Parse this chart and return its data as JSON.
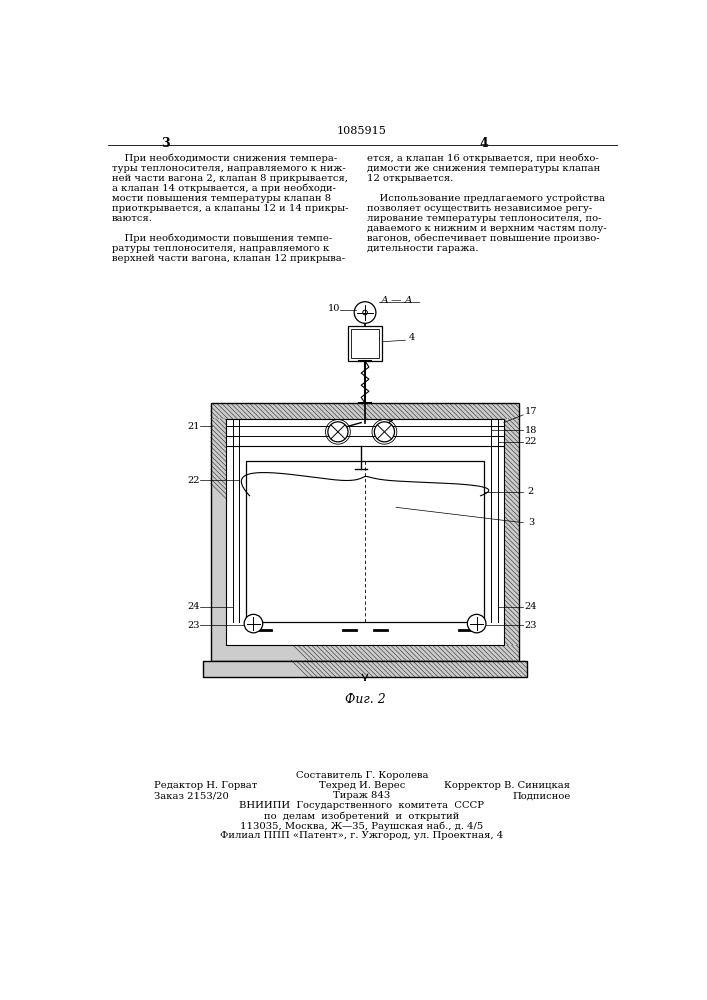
{
  "title": "1085915",
  "page_num_left": "3",
  "page_num_right": "4",
  "text_col1_lines": [
    "    При необходимости снижения темпера-",
    "туры теплоносителя, направляемого к ниж-",
    "ней части вагона 2, клапан 8 прикрывается,",
    "а клапан 14 открывается, а при необходи-",
    "мости повышения температуры клапан 8",
    "приоткрывается, а клапаны 12 и 14 прикры-",
    "ваются.",
    "",
    "    При необходимости повышения темпе-",
    "ратуры теплоносителя, направляемого к",
    "верхней части вагона, клапан 12 прикрыва-"
  ],
  "text_col2_lines": [
    "ется, а клапан 16 открывается, при необхо-",
    "димости же снижения температуры клапан",
    "12 открывается.",
    "",
    "    Использование предлагаемого устройства",
    "позволяет осуществить независимое регу-",
    "лирование температуры теплоносителя, по-",
    "даваемого к нижним и верхним частям полу-",
    "вагонов, обеспечивает повышение произво-",
    "дительности гаража."
  ],
  "fig_caption": "Фиг. 2",
  "footer_line1": "Составитель Г. Королева",
  "footer_left1": "Редактор Н. Горват",
  "footer_mid1": "Техред И. Верес",
  "footer_right1": "Корректор В. Синицкая",
  "footer_left2": "Заказ 2153/20",
  "footer_mid2": "Тираж 843",
  "footer_right2": "Подписное",
  "footer_line3": "ВНИИПИ  Государственного  комитета  СССР",
  "footer_line4": "по  делам  изобретений  и  открытий",
  "footer_line5": "113035, Москва, Ж—35, Раушская наб., д. 4/5",
  "footer_line6": "Филиал ППП «Патент», г. Ужгород, ул. Проектная, 4",
  "bg_color": "#ffffff",
  "text_color": "#000000",
  "line_color": "#000000"
}
